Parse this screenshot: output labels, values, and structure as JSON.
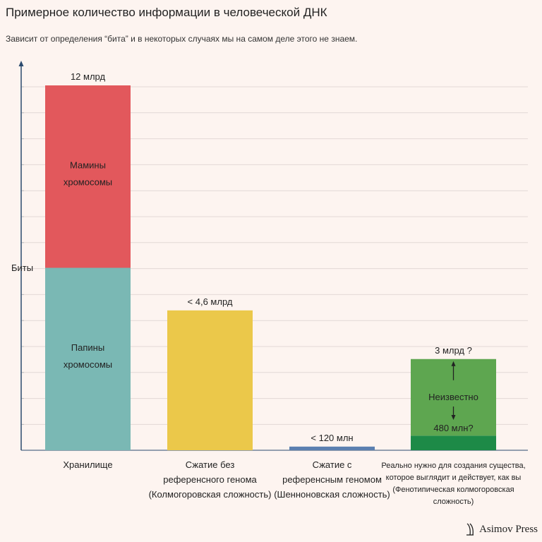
{
  "title": "Примерное количество информации в человеческой ДНК",
  "subtitle": "Зависит от определения “бита” и в некоторых случаях мы на самом деле этого не знаем.",
  "brand": "Asimov Press",
  "chart_data": {
    "type": "bar",
    "stacked": true,
    "ylabel": "Биты",
    "grid": true,
    "categories": [
      [
        "Хранилище"
      ],
      [
        "Сжатие без",
        "референсного генома",
        "(Колмогоровская сложность)"
      ],
      [
        "Сжатие с",
        "референсным геномом",
        "(Шенноновская сложность)"
      ],
      [
        "Реально нужно для создания существа,",
        "которое выглядит и действует, как вы",
        "(Фенотипическая колмогоровская",
        "сложность)"
      ]
    ],
    "bars": [
      {
        "total": 12,
        "total_label": "12 млрд",
        "segments": [
          {
            "value": 6,
            "color": "#7ab8b4",
            "label": [
              "Папины",
              "хромосомы"
            ]
          },
          {
            "value": 6,
            "color": "#e2585c",
            "label": [
              "Мамины",
              "хромосомы"
            ]
          }
        ]
      },
      {
        "total": 4.6,
        "total_label": "< 4,6 млрд",
        "segments": [
          {
            "value": 4.6,
            "color": "#ebc84a",
            "label": []
          }
        ]
      },
      {
        "total": 0.12,
        "total_label": "< 120 млн",
        "segments": [
          {
            "value": 0.12,
            "color": "#5b7fb0",
            "label": []
          }
        ]
      },
      {
        "total": 3,
        "total_label": "3 млрд ?",
        "lower_label": "480 млн?",
        "middle_label": "Неизвестно",
        "segments": [
          {
            "value": 0.48,
            "color": "#1d8a47",
            "label": []
          },
          {
            "value": 2.52,
            "color": "#5ea650",
            "label": []
          }
        ]
      }
    ],
    "y_units": "млрд бит",
    "ylim": [
      0,
      13
    ]
  }
}
